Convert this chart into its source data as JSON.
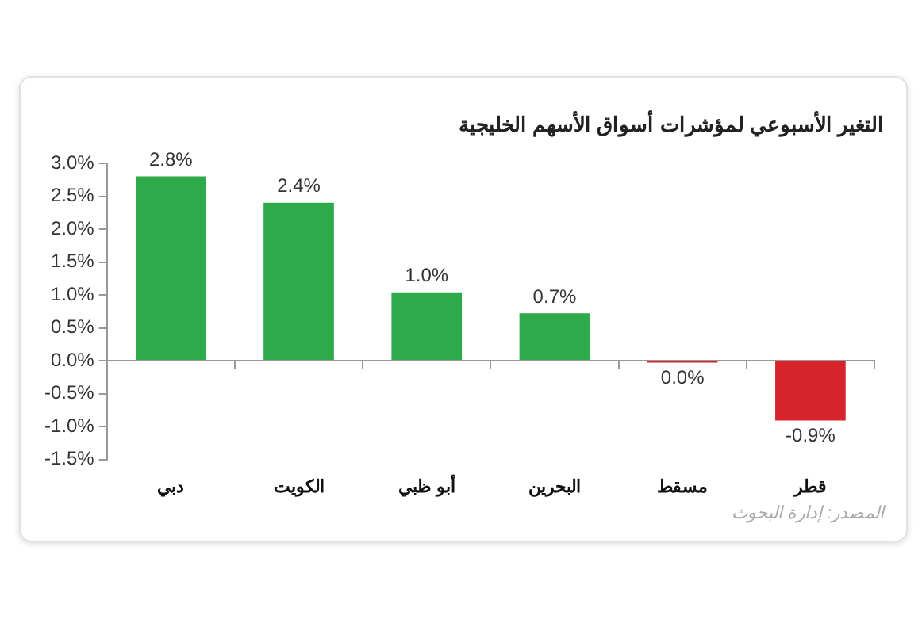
{
  "chart_data": {
    "type": "bar",
    "title": "التغير الأسبوعي لمؤشرات أسواق الأسهم الخليجية",
    "categories": [
      "دبي",
      "الكويت",
      "أبو ظبي",
      "البحرين",
      "مسقط",
      "قطر"
    ],
    "values": [
      2.8,
      2.4,
      1.04,
      0.72,
      -0.03,
      -0.91
    ],
    "colors": [
      "#2eaa4a",
      "#2eaa4a",
      "#2eaa4a",
      "#2eaa4a",
      "#d7232a",
      "#d7232a"
    ],
    "value_labels": [
      "2.8%",
      "2.4%",
      "1.0%",
      "0.7%",
      "0.0%",
      "-0.9%"
    ],
    "ylim": [
      -1.5,
      3.0
    ],
    "yticks": [
      {
        "value": -1.5,
        "label": "-1.5%"
      },
      {
        "value": -1.0,
        "label": "-1.0%"
      },
      {
        "value": -0.5,
        "label": "-0.5%"
      },
      {
        "value": 0,
        "label": "0.0%"
      },
      {
        "value": 0.5,
        "label": "0.5%"
      },
      {
        "value": 1.0,
        "label": "1.0%"
      },
      {
        "value": 1.5,
        "label": "1.5%"
      },
      {
        "value": 2.0,
        "label": "2.0%"
      },
      {
        "value": 2.5,
        "label": "2.5%"
      },
      {
        "value": 3.0,
        "label": "3.0%"
      }
    ],
    "legend": false,
    "annotations": [
      "المصدر: إدارة البحوث"
    ]
  }
}
